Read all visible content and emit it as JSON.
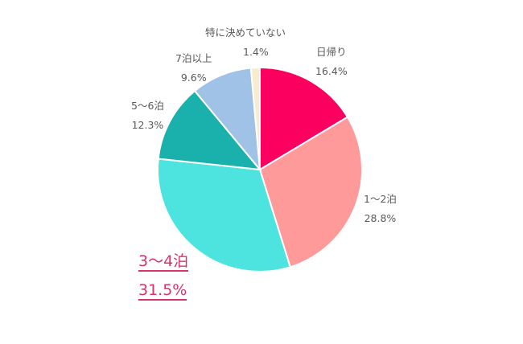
{
  "chart_data": {
    "type": "pie",
    "title": "",
    "start_angle_deg": 0,
    "direction": "clockwise",
    "slices": [
      {
        "label": "日帰り",
        "value": 16.4,
        "display": "16.4%",
        "color": "#fc005f"
      },
      {
        "label": "1〜2泊",
        "value": 28.8,
        "display": "28.8%",
        "color": "#ff9a9a"
      },
      {
        "label": "3〜4泊",
        "value": 31.5,
        "display": "31.5%",
        "color": "#4de3df",
        "highlighted": true
      },
      {
        "label": "5〜6泊",
        "value": 12.3,
        "display": "12.3%",
        "color": "#1ab0ab"
      },
      {
        "label": "7泊以上",
        "value": 9.6,
        "display": "9.6%",
        "color": "#9fc2e6"
      },
      {
        "label": "特に決めていない",
        "value": 1.4,
        "display": "1.4%",
        "color": "#f9eccc"
      }
    ],
    "legend": "none",
    "highlight_color": "#d6336c"
  },
  "labels": {
    "higaeri": {
      "name": "日帰り",
      "pct": "16.4%"
    },
    "n12": {
      "name": "1〜2泊",
      "pct": "28.8%"
    },
    "n34": {
      "name": "3〜4泊",
      "pct": "31.5%"
    },
    "n56": {
      "name": "5〜6泊",
      "pct": "12.3%"
    },
    "n7": {
      "name": "7泊以上",
      "pct": "9.6%"
    },
    "undecided": {
      "name": "特に決めていない",
      "pct": "1.4%"
    }
  }
}
